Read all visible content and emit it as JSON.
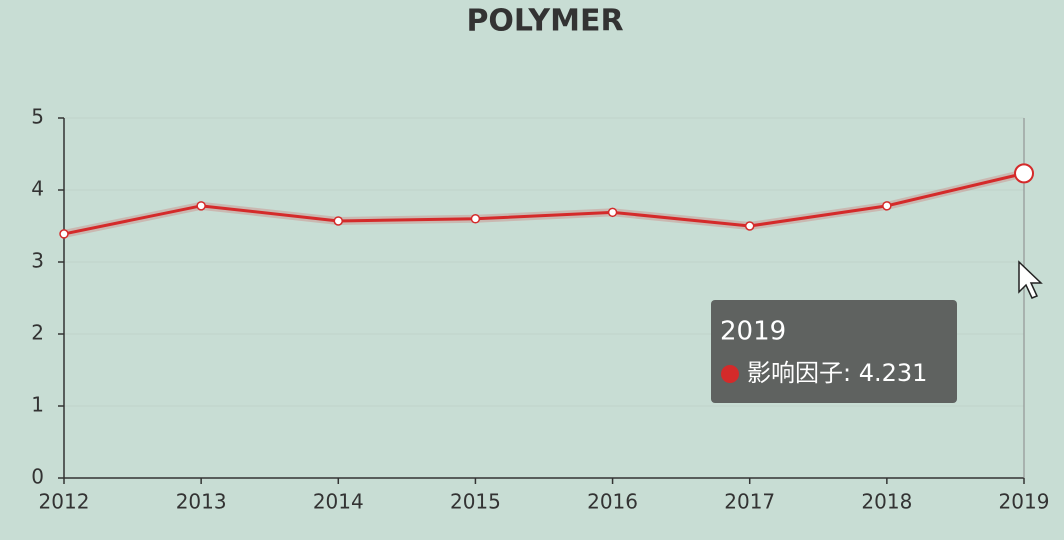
{
  "chart_data": {
    "type": "line",
    "title": "POLYMER",
    "categories": [
      "2012",
      "2013",
      "2014",
      "2015",
      "2016",
      "2017",
      "2018",
      "2019"
    ],
    "series": [
      {
        "name": "影响因子",
        "color": "#d42a2a",
        "values": [
          3.39,
          3.78,
          3.57,
          3.6,
          3.69,
          3.5,
          3.78,
          4.231
        ]
      }
    ],
    "ylim": [
      0,
      5
    ],
    "yticks": [
      0,
      1,
      2,
      3,
      4,
      5
    ],
    "grid": true,
    "tooltip": {
      "title": "2019",
      "label": "影响因子: 4.231"
    }
  }
}
